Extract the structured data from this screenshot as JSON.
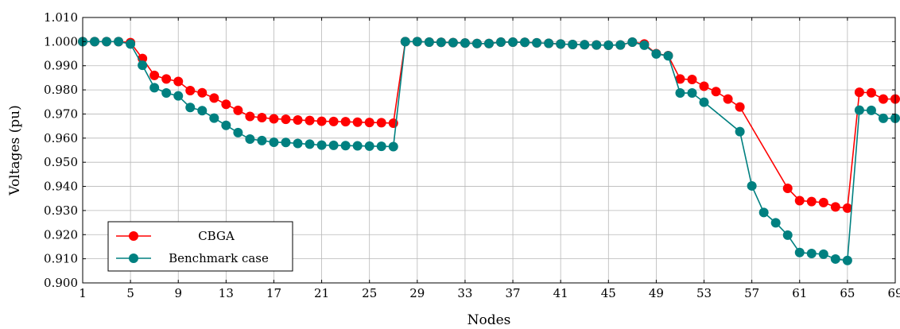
{
  "chart_data": {
    "type": "line",
    "xlabel": "Nodes",
    "ylabel": "Voltages (pu)",
    "xlim": [
      1,
      69
    ],
    "ylim": [
      0.9,
      1.01
    ],
    "xticks": [
      "1",
      "5",
      "9",
      "13",
      "17",
      "21",
      "25",
      "29",
      "33",
      "37",
      "41",
      "45",
      "49",
      "53",
      "57",
      "61",
      "65",
      "69"
    ],
    "yticks": [
      "0.900",
      "0.910",
      "0.920",
      "0.930",
      "0.940",
      "0.950",
      "0.960",
      "0.970",
      "0.980",
      "0.990",
      "1.000",
      "1.010"
    ],
    "grid": true,
    "legend_position": "bottom-left",
    "x": [
      1,
      2,
      3,
      4,
      5,
      6,
      7,
      8,
      9,
      10,
      11,
      12,
      13,
      14,
      15,
      16,
      17,
      18,
      19,
      20,
      21,
      22,
      23,
      24,
      25,
      26,
      27,
      28,
      29,
      30,
      31,
      32,
      33,
      34,
      35,
      36,
      37,
      38,
      39,
      40,
      41,
      42,
      43,
      44,
      45,
      46,
      47,
      48,
      49,
      50,
      51,
      52,
      53,
      54,
      55,
      56,
      57,
      58,
      59,
      60,
      61,
      62,
      63,
      64,
      65,
      66,
      67,
      68,
      69
    ],
    "series": [
      {
        "name": "CBGA",
        "color": "#ff0000",
        "points": [
          [
            1,
            1.0
          ],
          [
            2,
            1.0
          ],
          [
            3,
            1.0
          ],
          [
            4,
            1.0
          ],
          [
            5,
            0.9996
          ],
          [
            6,
            0.993
          ],
          [
            7,
            0.986
          ],
          [
            8,
            0.9845
          ],
          [
            9,
            0.9835
          ],
          [
            10,
            0.9797
          ],
          [
            11,
            0.9788
          ],
          [
            12,
            0.9766
          ],
          [
            13,
            0.974
          ],
          [
            14,
            0.9715
          ],
          [
            15,
            0.969
          ],
          [
            16,
            0.9685
          ],
          [
            17,
            0.968
          ],
          [
            18,
            0.9678
          ],
          [
            19,
            0.9675
          ],
          [
            20,
            0.9673
          ],
          [
            21,
            0.967
          ],
          [
            22,
            0.9669
          ],
          [
            23,
            0.9668
          ],
          [
            24,
            0.9666
          ],
          [
            25,
            0.9665
          ],
          [
            26,
            0.9664
          ],
          [
            27,
            0.9662
          ],
          [
            28,
            1.0
          ],
          [
            29,
            1.0
          ],
          [
            30,
            0.9998
          ],
          [
            31,
            0.9997
          ],
          [
            32,
            0.9996
          ],
          [
            33,
            0.9994
          ],
          [
            34,
            0.9992
          ],
          [
            35,
            0.9992
          ],
          [
            36,
            0.9998
          ],
          [
            37,
            0.9998
          ],
          [
            38,
            0.9997
          ],
          [
            39,
            0.9995
          ],
          [
            40,
            0.9993
          ],
          [
            41,
            0.999
          ],
          [
            42,
            0.9988
          ],
          [
            43,
            0.9987
          ],
          [
            44,
            0.9986
          ],
          [
            45,
            0.9985
          ],
          [
            46,
            0.9986
          ],
          [
            47,
            0.9998
          ],
          [
            48,
            0.999
          ],
          [
            49,
            0.995
          ],
          [
            50,
            0.9942
          ],
          [
            51,
            0.9845
          ],
          [
            52,
            0.9843
          ],
          [
            53,
            0.9815
          ],
          [
            54,
            0.9793
          ],
          [
            55,
            0.9762
          ],
          [
            56,
            0.9729
          ],
          [
            60,
            0.9392
          ],
          [
            61,
            0.9341
          ],
          [
            62,
            0.9337
          ],
          [
            63,
            0.9333
          ],
          [
            64,
            0.9315
          ],
          [
            65,
            0.931
          ],
          [
            66,
            0.979
          ],
          [
            67,
            0.9788
          ],
          [
            68,
            0.9762
          ],
          [
            69,
            0.9762
          ]
        ]
      },
      {
        "name": "Benchmark case",
        "color": "#008080",
        "points": [
          [
            1,
            1.0
          ],
          [
            2,
            1.0
          ],
          [
            3,
            1.0
          ],
          [
            4,
            1.0
          ],
          [
            5,
            0.999
          ],
          [
            6,
            0.9902
          ],
          [
            7,
            0.9809
          ],
          [
            8,
            0.9787
          ],
          [
            9,
            0.9775
          ],
          [
            10,
            0.9727
          ],
          [
            11,
            0.9714
          ],
          [
            12,
            0.9683
          ],
          [
            13,
            0.9653
          ],
          [
            14,
            0.9623
          ],
          [
            15,
            0.9596
          ],
          [
            16,
            0.959
          ],
          [
            17,
            0.9583
          ],
          [
            18,
            0.9582
          ],
          [
            19,
            0.9578
          ],
          [
            20,
            0.9575
          ],
          [
            21,
            0.9571
          ],
          [
            22,
            0.957
          ],
          [
            23,
            0.9569
          ],
          [
            24,
            0.9568
          ],
          [
            25,
            0.9567
          ],
          [
            26,
            0.9566
          ],
          [
            27,
            0.9565
          ],
          [
            28,
            1.0
          ],
          [
            29,
            1.0
          ],
          [
            30,
            0.9998
          ],
          [
            31,
            0.9997
          ],
          [
            32,
            0.9996
          ],
          [
            33,
            0.9994
          ],
          [
            34,
            0.9992
          ],
          [
            35,
            0.9992
          ],
          [
            36,
            0.9998
          ],
          [
            37,
            0.9998
          ],
          [
            38,
            0.9997
          ],
          [
            39,
            0.9995
          ],
          [
            40,
            0.9993
          ],
          [
            41,
            0.999
          ],
          [
            42,
            0.9988
          ],
          [
            43,
            0.9987
          ],
          [
            44,
            0.9986
          ],
          [
            45,
            0.9985
          ],
          [
            46,
            0.9986
          ],
          [
            47,
            0.9998
          ],
          [
            48,
            0.9985
          ],
          [
            49,
            0.9949
          ],
          [
            50,
            0.9941
          ],
          [
            51,
            0.9787
          ],
          [
            52,
            0.9787
          ],
          [
            53,
            0.9749
          ],
          [
            56,
            0.9627
          ],
          [
            57,
            0.9402
          ],
          [
            58,
            0.9292
          ],
          [
            59,
            0.9249
          ],
          [
            60,
            0.9198
          ],
          [
            61,
            0.9126
          ],
          [
            62,
            0.9122
          ],
          [
            63,
            0.9119
          ],
          [
            64,
            0.9099
          ],
          [
            65,
            0.9093
          ],
          [
            66,
            0.9716
          ],
          [
            67,
            0.9715
          ],
          [
            68,
            0.9682
          ],
          [
            69,
            0.9682
          ]
        ]
      }
    ]
  }
}
